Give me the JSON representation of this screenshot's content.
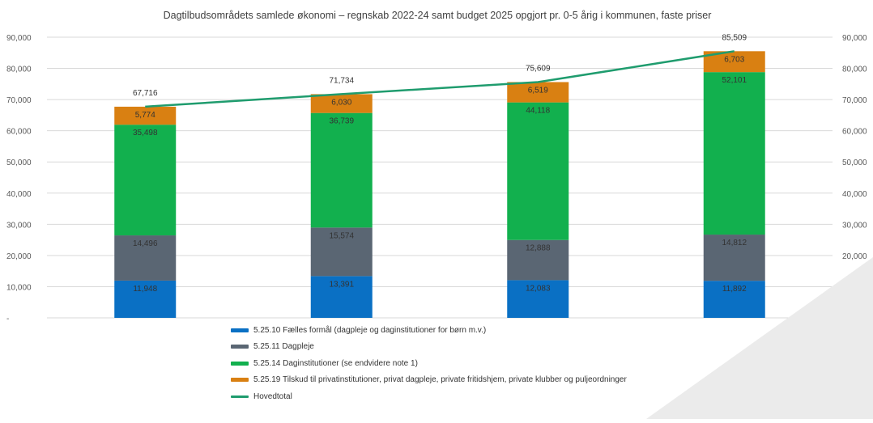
{
  "chart_data": {
    "type": "bar",
    "stacked": true,
    "title": "Dagtilbudsområdets samlede økonomi – regnskab 2022-24 samt budget 2025 opgjort pr. 0-5 årig i kommunen, faste priser",
    "categories": [
      "",
      "",
      "",
      ""
    ],
    "series": [
      {
        "name": "5.25.10 Fælles formål (dagpleje og daginstitutioner for børn m.v.)",
        "type": "bar",
        "color": "#0a70c4",
        "values": [
          11948,
          13391,
          12083,
          11892
        ]
      },
      {
        "name": "5.25.11 Dagpleje",
        "type": "bar",
        "color": "#5a6673",
        "values": [
          14496,
          15574,
          12888,
          14812
        ]
      },
      {
        "name": "5.25.14 Daginstitutioner (se endvidere note 1)",
        "type": "bar",
        "color": "#12b04e",
        "values": [
          35498,
          36739,
          44118,
          52101
        ]
      },
      {
        "name": "5.25.19 Tilskud til privatinstitutioner, privat dagpleje, private fritidshjem, private klubber og puljeordninger",
        "type": "bar",
        "color": "#d98012",
        "values": [
          5774,
          6030,
          6519,
          6703
        ]
      },
      {
        "name": "Hovedtotal",
        "type": "line",
        "color": "#1f9c6e",
        "values": [
          67716,
          71734,
          75609,
          85509
        ]
      }
    ],
    "value_labels": {
      "segments": [
        [
          "11,948",
          "14,496",
          "35,498",
          "5,774"
        ],
        [
          "13,391",
          "15,574",
          "36,739",
          "6,030"
        ],
        [
          "12,083",
          "12,888",
          "44,118",
          "6,519"
        ],
        [
          "11,892",
          "14,812",
          "52,101",
          "6,703"
        ]
      ],
      "totals": [
        "67,716",
        "71,734",
        "75,609",
        "85,509"
      ]
    },
    "ylim": [
      0,
      90000
    ],
    "yticks": [
      0,
      10000,
      20000,
      30000,
      40000,
      50000,
      60000,
      70000,
      80000,
      90000
    ],
    "ytick_labels": [
      "-",
      "10,000",
      "20,000",
      "30,000",
      "40,000",
      "50,000",
      "60,000",
      "70,000",
      "80,000",
      "90,000"
    ],
    "secondary_axis": true,
    "xlabel": "",
    "ylabel": "",
    "grid": true,
    "legend_position": "bottom"
  }
}
